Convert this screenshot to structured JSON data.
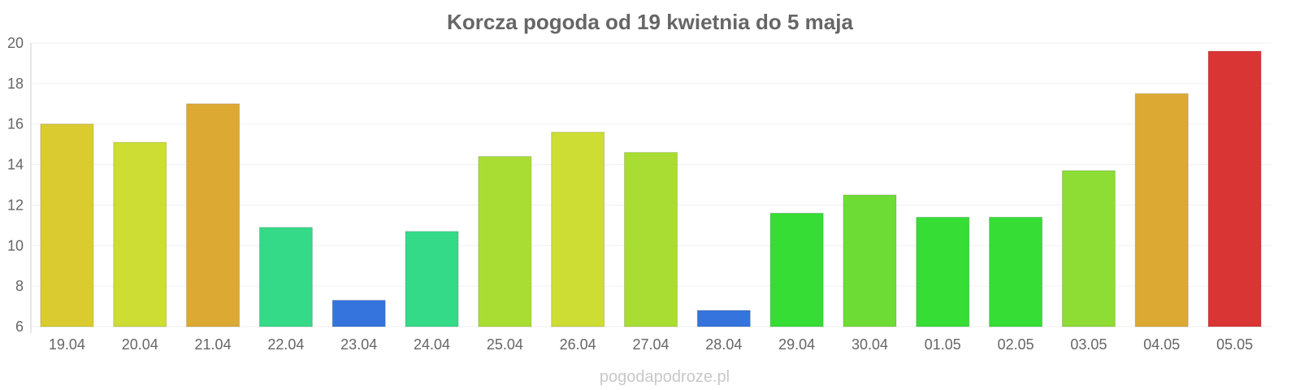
{
  "chart_data": {
    "type": "bar",
    "title": "Korcza pogoda od 19 kwietnia do 5 maja",
    "xlabel": "",
    "ylabel": "",
    "ylim": [
      6,
      20
    ],
    "yticks": [
      "6",
      "8",
      "10",
      "12",
      "14",
      "16",
      "18",
      "20"
    ],
    "grid": true,
    "categories": [
      "19.04",
      "20.04",
      "21.04",
      "22.04",
      "23.04",
      "24.04",
      "25.04",
      "26.04",
      "27.04",
      "28.04",
      "29.04",
      "30.04",
      "01.05",
      "02.05",
      "03.05",
      "04.05",
      "05.05"
    ],
    "values": [
      16.0,
      15.1,
      17.0,
      10.9,
      7.3,
      10.7,
      14.4,
      15.6,
      14.6,
      6.8,
      11.6,
      12.5,
      11.4,
      11.4,
      13.7,
      17.5,
      19.6
    ],
    "colors": [
      "#dacb30",
      "#cddd34",
      "#dca933",
      "#35da89",
      "#3474dc",
      "#35da89",
      "#a9dd33",
      "#cddd34",
      "#a9dd33",
      "#3474dc",
      "#35dd35",
      "#6ddd35",
      "#35dd35",
      "#35dd35",
      "#8ddd35",
      "#dca933",
      "#da3535"
    ]
  },
  "watermark": "pogodapodroze.pl"
}
